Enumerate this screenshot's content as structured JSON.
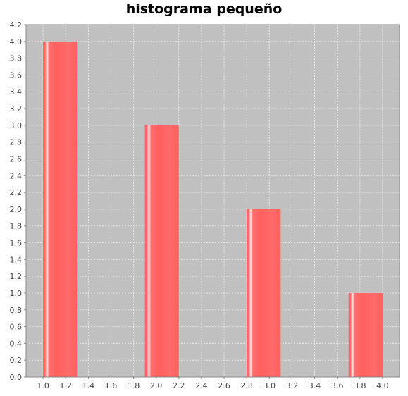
{
  "chart_data": {
    "type": "bar",
    "title": "histograma pequeño",
    "xlabel": "",
    "ylabel": "",
    "bins": [
      {
        "start": 1.0,
        "end": 1.3,
        "value": 4
      },
      {
        "start": 1.9,
        "end": 2.2,
        "value": 3
      },
      {
        "start": 2.8,
        "end": 3.1,
        "value": 2
      },
      {
        "start": 3.7,
        "end": 4.0,
        "value": 1
      }
    ],
    "xlim": [
      0.85,
      4.15
    ],
    "ylim": [
      0.0,
      4.2
    ],
    "x_ticks": [
      "1.0",
      "1.2",
      "1.4",
      "1.6",
      "1.8",
      "2.0",
      "2.2",
      "2.4",
      "2.6",
      "2.8",
      "3.0",
      "3.2",
      "3.4",
      "3.6",
      "3.8",
      "4.0"
    ],
    "y_ticks": [
      "0.0",
      "0.2",
      "0.4",
      "0.6",
      "0.8",
      "1.0",
      "1.2",
      "1.4",
      "1.6",
      "1.8",
      "2.0",
      "2.2",
      "2.4",
      "2.6",
      "2.8",
      "3.0",
      "3.2",
      "3.4",
      "3.6",
      "3.8",
      "4.0",
      "4.2"
    ],
    "grid": true,
    "legend": "none",
    "colors": {
      "bar": "#ff5f5f",
      "bar_highlight": "#ffe6e6",
      "plot_background": "#c0c0c0",
      "gridline": "#e8e8e8"
    }
  }
}
